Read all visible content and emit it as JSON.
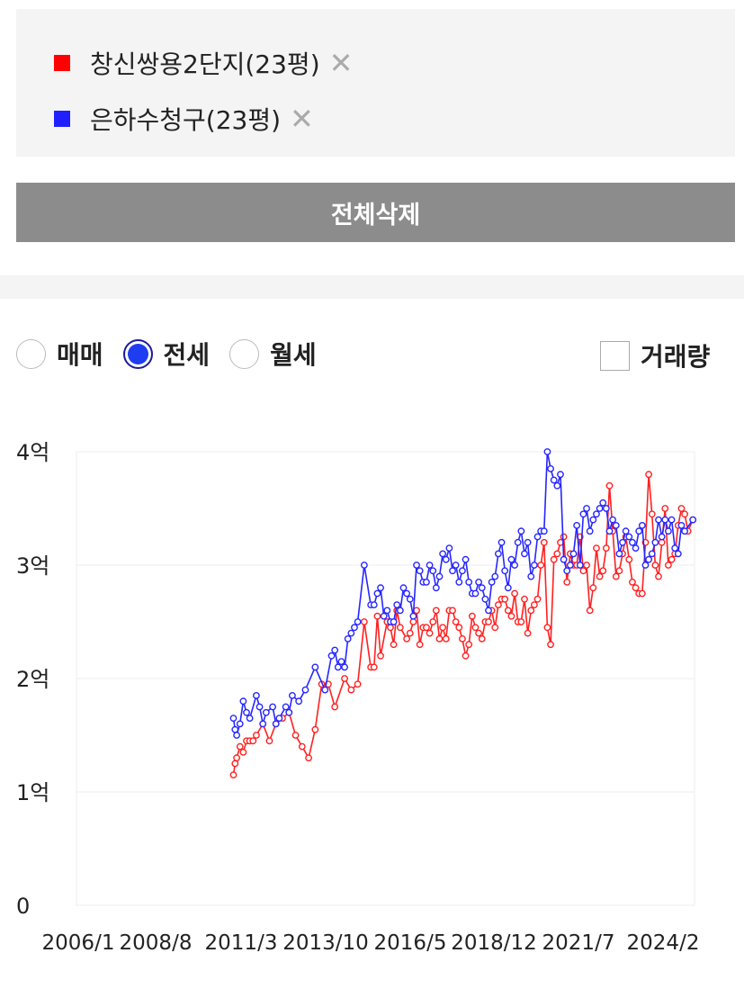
{
  "compare_list": {
    "items": [
      {
        "name": "창신쌍용2단지(23평)",
        "color": "#ff0000",
        "remove_icon": "close-icon"
      },
      {
        "name": "은하수청구(23평)",
        "color": "#2020ff",
        "remove_icon": "close-icon"
      }
    ],
    "clear_label": "전체삭제"
  },
  "filters": {
    "radios": [
      {
        "label": "매매",
        "selected": false
      },
      {
        "label": "전세",
        "selected": true
      },
      {
        "label": "월세",
        "selected": false
      }
    ],
    "volume_label": "거래량",
    "volume_checked": false
  },
  "chart_data": {
    "type": "line",
    "x_ticks": [
      "2006/1",
      "2008/8",
      "2011/3",
      "2013/10",
      "2016/5",
      "2018/12",
      "2021/7",
      "2024/2"
    ],
    "y_ticks": [
      "0",
      "1억",
      "2억",
      "3억",
      "4억"
    ],
    "ylim": [
      0,
      4
    ],
    "xlim": [
      2006.0,
      2024.9
    ],
    "grid": true,
    "series": [
      {
        "name": "창신쌍용2단지(23평)",
        "color": "#ff2020",
        "x": [
          2010.8,
          2010.9,
          2011.0,
          2011.2,
          2011.4,
          2011.5,
          2011.7,
          2011.9,
          2012.1,
          2012.3,
          2012.5,
          2012.7,
          2012.9,
          2013.1,
          2013.3,
          2013.5,
          2013.7,
          2014.2,
          2014.8,
          2015.0,
          2015.2,
          2015.5,
          2015.7,
          2015.9,
          2016.2,
          2016.3,
          2016.4,
          2016.6,
          2016.8,
          2017.0,
          2017.2,
          2017.3,
          2017.5,
          2017.7,
          2017.9,
          2018.1,
          2018.3,
          2018.5,
          2018.7,
          2018.9,
          2019.1,
          2019.3,
          2019.5,
          2019.7,
          2019.9,
          2020.1,
          2020.3,
          2020.5,
          2020.7,
          2020.9,
          2021.1,
          2021.3,
          2021.5,
          2021.7,
          2021.9,
          2022.1,
          2022.3,
          2022.5,
          2022.7,
          2022.9,
          2023.1,
          2023.3,
          2023.5,
          2023.7,
          2023.9,
          2024.1,
          2024.3,
          2024.5,
          2024.7,
          2024.85
        ],
        "y": [
          1.15,
          1.3,
          1.4,
          1.45,
          1.45,
          1.5,
          1.6,
          1.45,
          1.6,
          1.65,
          1.7,
          1.5,
          1.4,
          1.3,
          1.55,
          1.95,
          1.95,
          2.0,
          2.5,
          2.1,
          2.55,
          2.5,
          2.3,
          2.45,
          2.4,
          2.5,
          2.6,
          2.45,
          2.4,
          2.6,
          2.45,
          2.35,
          2.6,
          2.45,
          2.2,
          2.55,
          2.4,
          2.5,
          2.6,
          2.65,
          2.7,
          2.55,
          2.5,
          2.7,
          2.6,
          2.7,
          3.2,
          2.3,
          3.1,
          3.25,
          3.1,
          3.0,
          2.95,
          2.6,
          3.15,
          2.95,
          3.7,
          2.9,
          3.1,
          3.05,
          2.8,
          2.75,
          3.8,
          3.0,
          3.2,
          3.0,
          3.1,
          3.5,
          3.3,
          3.4
        ],
        "extra_x": [
          2010.85,
          2011.1,
          2011.3,
          2013.9,
          2014.4,
          2014.6,
          2015.1,
          2015.3,
          2015.6,
          2015.8,
          2016.1,
          2016.5,
          2016.7,
          2016.9,
          2017.1,
          2017.4,
          2017.6,
          2017.8,
          2018.0,
          2018.2,
          2018.4,
          2018.6,
          2018.8,
          2019.0,
          2019.2,
          2019.4,
          2019.6,
          2019.8,
          2020.0,
          2020.2,
          2020.4,
          2020.6,
          2020.8,
          2021.0,
          2021.2,
          2021.4,
          2021.6,
          2021.8,
          2022.0,
          2022.2,
          2022.4,
          2022.6,
          2022.8,
          2023.0,
          2023.2,
          2023.4,
          2023.6,
          2023.8,
          2024.0,
          2024.2,
          2024.4,
          2024.6
        ],
        "extra_y": [
          1.25,
          1.35,
          1.45,
          1.75,
          1.9,
          1.95,
          2.1,
          2.2,
          2.45,
          2.6,
          2.35,
          2.3,
          2.45,
          2.5,
          2.35,
          2.6,
          2.5,
          2.35,
          2.3,
          2.45,
          2.35,
          2.5,
          2.45,
          2.7,
          2.6,
          2.75,
          2.5,
          2.4,
          2.65,
          3.0,
          2.45,
          3.05,
          3.2,
          2.85,
          3.0,
          3.25,
          3.0,
          2.8,
          2.9,
          3.15,
          3.3,
          2.95,
          3.25,
          2.85,
          2.75,
          3.2,
          3.45,
          2.9,
          3.5,
          3.05,
          3.35,
          3.45
        ]
      },
      {
        "name": "은하수청구(23평)",
        "color": "#2626ff",
        "x": [
          2010.8,
          2010.9,
          2011.0,
          2011.1,
          2011.3,
          2011.5,
          2011.7,
          2011.8,
          2012.0,
          2012.2,
          2012.4,
          2012.6,
          2012.8,
          2013.0,
          2013.6,
          2013.9,
          2014.0,
          2014.2,
          2014.4,
          2014.6,
          2014.8,
          2015.0,
          2015.3,
          2015.5,
          2015.6,
          2015.8,
          2016.0,
          2016.2,
          2016.4,
          2016.6,
          2016.8,
          2017.0,
          2017.2,
          2017.4,
          2017.6,
          2017.8,
          2018.0,
          2018.2,
          2018.4,
          2018.6,
          2018.8,
          2019.0,
          2019.2,
          2019.4,
          2019.6,
          2019.8,
          2020.0,
          2020.2,
          2020.4,
          2020.6,
          2020.8,
          2021.0,
          2021.2,
          2021.4,
          2021.6,
          2021.8,
          2022.0,
          2022.2,
          2022.4,
          2022.6,
          2022.8,
          2023.0,
          2023.2,
          2023.4,
          2023.6,
          2023.8,
          2024.0,
          2024.2,
          2024.4,
          2024.6,
          2024.85
        ],
        "y": [
          1.65,
          1.5,
          1.6,
          1.8,
          1.65,
          1.85,
          1.6,
          1.7,
          1.75,
          1.65,
          1.75,
          1.85,
          1.8,
          1.9,
          1.9,
          2.25,
          2.1,
          2.1,
          2.4,
          2.5,
          3.0,
          2.65,
          2.8,
          2.6,
          2.5,
          2.65,
          2.8,
          2.7,
          3.0,
          2.85,
          3.0,
          2.8,
          3.1,
          3.15,
          3.0,
          2.95,
          2.85,
          2.75,
          2.8,
          2.6,
          2.9,
          3.2,
          2.8,
          3.0,
          3.3,
          3.2,
          3.0,
          3.3,
          4.0,
          3.75,
          3.8,
          2.95,
          3.1,
          3.0,
          3.5,
          3.4,
          3.5,
          3.5,
          3.4,
          3.1,
          3.3,
          3.2,
          3.3,
          3.0,
          3.1,
          3.4,
          3.4,
          3.4,
          3.1,
          3.3,
          3.4
        ],
        "extra_x": [
          2010.85,
          2011.2,
          2011.6,
          2012.1,
          2012.5,
          2013.3,
          2013.8,
          2014.1,
          2014.3,
          2014.5,
          2015.1,
          2015.2,
          2015.4,
          2015.7,
          2015.9,
          2016.1,
          2016.3,
          2016.5,
          2016.7,
          2016.9,
          2017.1,
          2017.3,
          2017.5,
          2017.7,
          2017.9,
          2018.1,
          2018.3,
          2018.5,
          2018.7,
          2018.9,
          2019.1,
          2019.3,
          2019.5,
          2019.7,
          2019.9,
          2020.1,
          2020.3,
          2020.5,
          2020.7,
          2020.9,
          2021.1,
          2021.3,
          2021.5,
          2021.7,
          2021.9,
          2022.1,
          2022.3,
          2022.5,
          2022.7,
          2022.9,
          2023.1,
          2023.3,
          2023.5,
          2023.7,
          2023.9,
          2024.1,
          2024.3,
          2024.5
        ],
        "extra_y": [
          1.55,
          1.7,
          1.75,
          1.6,
          1.7,
          2.1,
          2.2,
          2.15,
          2.35,
          2.45,
          2.65,
          2.75,
          2.55,
          2.5,
          2.6,
          2.75,
          2.55,
          2.95,
          2.85,
          2.95,
          2.9,
          3.05,
          2.95,
          2.85,
          3.05,
          2.75,
          2.85,
          2.7,
          2.85,
          3.1,
          2.95,
          3.05,
          3.2,
          3.1,
          2.9,
          3.25,
          3.3,
          3.85,
          3.7,
          3.05,
          3.0,
          3.35,
          3.45,
          3.3,
          3.45,
          3.55,
          3.3,
          3.35,
          3.2,
          3.25,
          3.15,
          3.35,
          3.05,
          3.2,
          3.25,
          3.3,
          3.15,
          3.35
        ]
      }
    ]
  }
}
